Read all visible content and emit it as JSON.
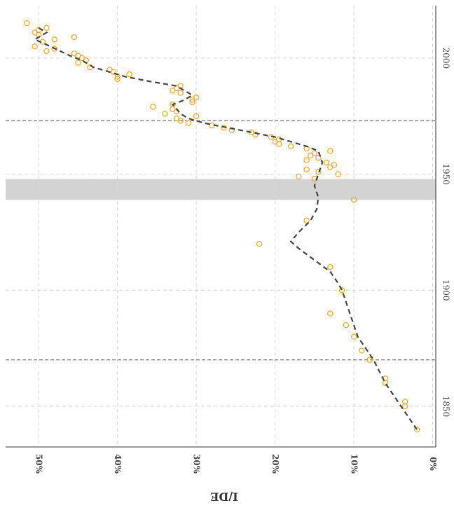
{
  "chart_data": {
    "type": "scatter",
    "ylabel": "I/DE",
    "xlim": [
      2022.6,
      1832.5
    ],
    "xticks": [
      1850,
      1900,
      1950,
      2000
    ],
    "ylim": [
      54.2,
      -0.4
    ],
    "yticks": [
      {
        "value": 50,
        "label": "50%"
      },
      {
        "value": 40,
        "label": "40%"
      },
      {
        "value": 30,
        "label": "30%"
      },
      {
        "value": 20,
        "label": "20%"
      },
      {
        "value": 10,
        "label": "10%"
      },
      {
        "value": 0,
        "label": "0%"
      }
    ],
    "grid": true,
    "bands": [
      {
        "from": 1938.9,
        "to": 1947.9,
        "color": "#d3d3d3"
      }
    ],
    "vlines": [
      1870,
      1973
    ],
    "series": [
      {
        "type": "scatter",
        "color": "#f5a623",
        "x": [
          2015,
          2013,
          2012,
          2011,
          2010,
          2009,
          2008,
          2007,
          2005,
          2004,
          2003,
          2002,
          2001,
          2000,
          1999,
          1998,
          1996,
          1995,
          1994,
          1993,
          1992,
          1991,
          1988,
          1987,
          1986,
          1985,
          1983,
          1982,
          1981,
          1980,
          1979,
          1978,
          1977,
          1976,
          1975,
          1974,
          1973,
          1972,
          1971,
          1970,
          1969,
          1968,
          1967,
          1966,
          1965,
          1964,
          1963,
          1962,
          1961,
          1960,
          1959,
          1958,
          1957,
          1956,
          1955,
          1954,
          1953,
          1952,
          1951,
          1950,
          1949,
          1948,
          1939,
          1930,
          1920,
          1910,
          1900,
          1890,
          1885,
          1880,
          1874,
          1870,
          1862,
          1860,
          1852,
          1850,
          1840
        ],
        "values": [
          51.5,
          49,
          50,
          50.5,
          50,
          45.5,
          48,
          49.5,
          50.5,
          48,
          49,
          45.5,
          45,
          44.5,
          44,
          45,
          43.5,
          41,
          40.5,
          38.5,
          40,
          40,
          32,
          32.5,
          33,
          32,
          30,
          30.5,
          30.5,
          33,
          35.5,
          33,
          32.5,
          34,
          30,
          32.5,
          32,
          31,
          28,
          26.5,
          25.5,
          23,
          22.5,
          20.5,
          19.5,
          20,
          19.5,
          18,
          16,
          13,
          15,
          15.5,
          14.5,
          16,
          13.5,
          12.5,
          13,
          16,
          14.5,
          12,
          17,
          15,
          10,
          16,
          22,
          13,
          11.5,
          13,
          11,
          10,
          9,
          8,
          6,
          6,
          3.5,
          3.5,
          2
        ]
      },
      {
        "type": "line",
        "color": "#444444",
        "x": [
          2013,
          2011,
          2008,
          2005,
          2001,
          1999,
          1996,
          1994,
          1992,
          1990,
          1988,
          1986,
          1984,
          1982,
          1980,
          1978,
          1976,
          1974,
          1972,
          1970,
          1968,
          1966,
          1964,
          1962,
          1960,
          1955,
          1950,
          1945,
          1940,
          1935,
          1930,
          1925,
          1921,
          1918,
          1913,
          1908,
          1903,
          1900,
          1890,
          1880,
          1870,
          1860,
          1850,
          1840
        ],
        "values": [
          50,
          49,
          50.5,
          48.5,
          46,
          44.5,
          43,
          41,
          39,
          36,
          32.5,
          31.5,
          30.5,
          31.5,
          33,
          32.5,
          32,
          31,
          29,
          26,
          23,
          20,
          18,
          16,
          14.5,
          14,
          14.5,
          15,
          14.5,
          14.7,
          15.5,
          17,
          18,
          17,
          15,
          13,
          12,
          11.5,
          10.5,
          9.5,
          7.5,
          6,
          4,
          2
        ]
      }
    ]
  }
}
